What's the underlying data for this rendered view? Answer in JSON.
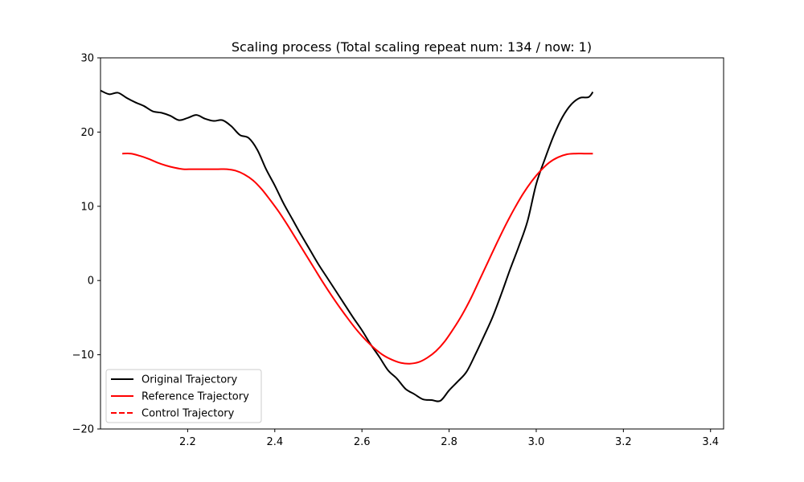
{
  "chart_data": {
    "type": "line",
    "title": "Scaling process (Total scaling repeat num: 134 / now: 1)",
    "xlabel": "",
    "ylabel": "",
    "xlim": [
      2.0,
      3.43
    ],
    "ylim": [
      -20,
      30
    ],
    "x_ticks": [
      2.2,
      2.4,
      2.6,
      2.8,
      3.0,
      3.2,
      3.4
    ],
    "x_tick_labels": [
      "2.2",
      "2.4",
      "2.6",
      "2.8",
      "3.0",
      "3.2",
      "3.4"
    ],
    "y_ticks": [
      -20,
      -10,
      0,
      10,
      20,
      30
    ],
    "y_tick_labels": [
      "−20",
      "−10",
      "0",
      "10",
      "20",
      "30"
    ],
    "grid": false,
    "legend_position": "bottom-left",
    "series": [
      {
        "name": "Original Trajectory",
        "color": "#000000",
        "style": "solid",
        "x": [
          2.0,
          2.02,
          2.04,
          2.06,
          2.08,
          2.1,
          2.12,
          2.14,
          2.16,
          2.18,
          2.2,
          2.22,
          2.24,
          2.26,
          2.28,
          2.3,
          2.32,
          2.34,
          2.36,
          2.38,
          2.4,
          2.42,
          2.44,
          2.46,
          2.48,
          2.5,
          2.52,
          2.54,
          2.56,
          2.58,
          2.6,
          2.62,
          2.64,
          2.66,
          2.68,
          2.7,
          2.72,
          2.74,
          2.76,
          2.78,
          2.8,
          2.82,
          2.84,
          2.86,
          2.88,
          2.9,
          2.92,
          2.94,
          2.96,
          2.98,
          3.0,
          3.02,
          3.04,
          3.06,
          3.08,
          3.1,
          3.12,
          3.13
        ],
        "y": [
          25.6,
          25.1,
          25.3,
          24.6,
          24.0,
          23.5,
          22.8,
          22.6,
          22.2,
          21.6,
          21.9,
          22.3,
          21.8,
          21.5,
          21.6,
          20.8,
          19.6,
          19.2,
          17.6,
          15.0,
          12.8,
          10.4,
          8.3,
          6.2,
          4.2,
          2.2,
          0.4,
          -1.4,
          -3.2,
          -5.0,
          -6.7,
          -8.6,
          -10.3,
          -12.1,
          -13.2,
          -14.6,
          -15.3,
          -16.0,
          -16.1,
          -16.2,
          -14.8,
          -13.6,
          -12.3,
          -10.0,
          -7.5,
          -4.9,
          -1.8,
          1.5,
          4.6,
          8.0,
          13.0,
          16.4,
          19.5,
          22.0,
          23.7,
          24.6,
          24.7,
          25.4
        ]
      },
      {
        "name": "Reference Trajectory",
        "color": "#ff0000",
        "style": "solid",
        "x": [
          2.05,
          2.07,
          2.09,
          2.11,
          2.13,
          2.15,
          2.17,
          2.19,
          2.21,
          2.23,
          2.25,
          2.27,
          2.29,
          2.31,
          2.33,
          2.35,
          2.37,
          2.39,
          2.41,
          2.43,
          2.45,
          2.47,
          2.49,
          2.51,
          2.53,
          2.55,
          2.57,
          2.59,
          2.61,
          2.63,
          2.65,
          2.67,
          2.69,
          2.71,
          2.73,
          2.75,
          2.77,
          2.79,
          2.81,
          2.83,
          2.85,
          2.87,
          2.89,
          2.91,
          2.93,
          2.95,
          2.97,
          2.99,
          3.01,
          3.03,
          3.05,
          3.07,
          3.09,
          3.11,
          3.13
        ],
        "y": [
          17.1,
          17.1,
          16.8,
          16.4,
          15.9,
          15.5,
          15.2,
          15.0,
          15.0,
          15.0,
          15.0,
          15.0,
          15.0,
          14.8,
          14.3,
          13.5,
          12.3,
          10.8,
          9.2,
          7.4,
          5.5,
          3.6,
          1.7,
          -0.2,
          -2.0,
          -3.7,
          -5.3,
          -6.8,
          -8.1,
          -9.2,
          -10.1,
          -10.7,
          -11.1,
          -11.2,
          -11.0,
          -10.4,
          -9.5,
          -8.2,
          -6.5,
          -4.6,
          -2.4,
          0.1,
          2.6,
          5.1,
          7.5,
          9.7,
          11.7,
          13.4,
          14.8,
          15.9,
          16.6,
          17.0,
          17.1,
          17.1,
          17.1
        ]
      },
      {
        "name": "Control Trajectory",
        "color": "#ff0000",
        "style": "dashed",
        "x": [],
        "y": []
      }
    ]
  }
}
